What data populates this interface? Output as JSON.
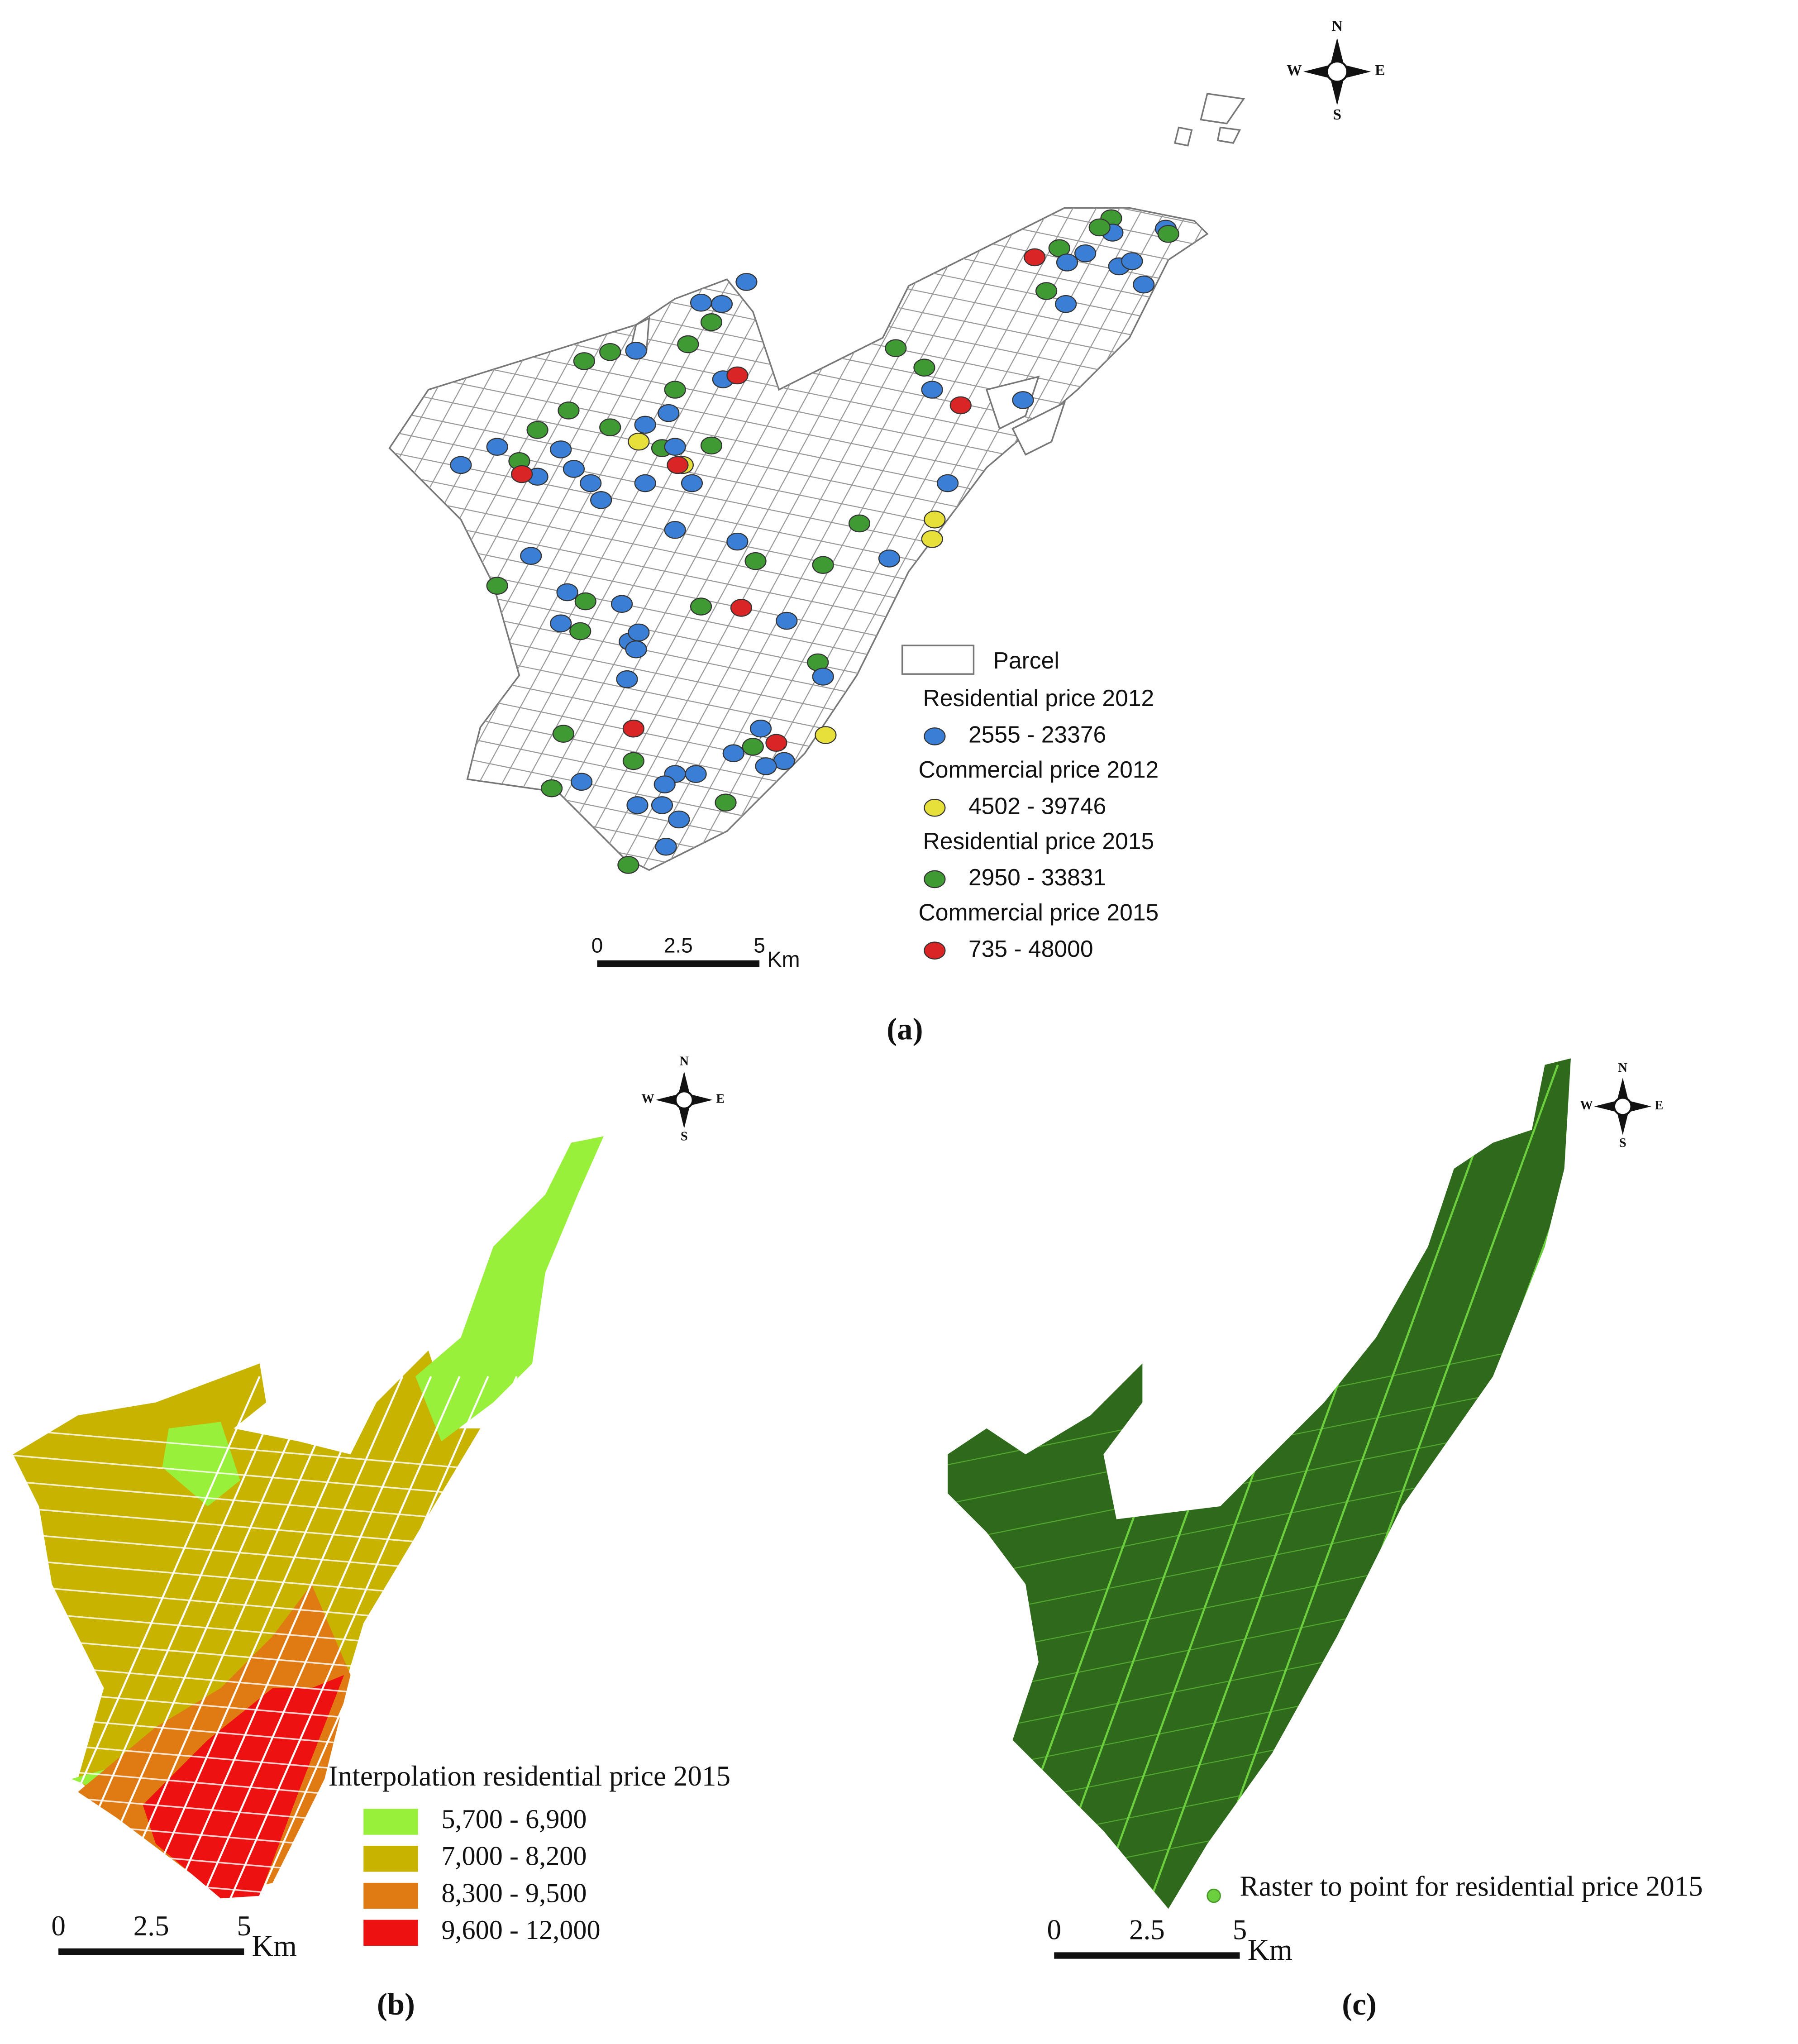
{
  "panel_a": {
    "compass": {
      "n": "N",
      "e": "E",
      "s": "S",
      "w": "W"
    },
    "legend": {
      "parcel": {
        "label": "Parcel",
        "color": "#ffffff"
      },
      "groups": [
        {
          "title": "Residential price 2012",
          "range": "2555 - 23376",
          "color": "#3a7fd5"
        },
        {
          "title": "Commercial price 2012",
          "range": "4502 - 39746",
          "color": "#e8e03a"
        },
        {
          "title": "Residential price 2015",
          "range": "2950 - 33831",
          "color": "#3f9a34"
        },
        {
          "title": "Commercial price 2015",
          "range": "735 - 48000",
          "color": "#d92525"
        }
      ]
    },
    "scale": {
      "ticks": [
        "0",
        "2.5",
        "5"
      ],
      "unit": "Km"
    },
    "caption": "(a)"
  },
  "panel_b": {
    "compass": {
      "n": "N",
      "e": "E",
      "s": "S",
      "w": "W"
    },
    "legend": {
      "title": "Interpolation residential price 2015",
      "classes": [
        {
          "label": "5,700 - 6,900",
          "color": "#99f03a"
        },
        {
          "label": "7,000 - 8,200",
          "color": "#c8b400"
        },
        {
          "label": "8,300 - 9,500",
          "color": "#e07b14"
        },
        {
          "label": "9,600 - 12,000",
          "color": "#ee1111"
        }
      ]
    },
    "scale": {
      "ticks": [
        "0",
        "2.5",
        "5"
      ],
      "unit": "Km"
    },
    "caption": "(b)"
  },
  "panel_c": {
    "compass": {
      "n": "N",
      "e": "E",
      "s": "S",
      "w": "W"
    },
    "legend": {
      "label": "Raster to point for residential price 2015",
      "color": "#6bcf3e"
    },
    "scale": {
      "ticks": [
        "0",
        "2.5",
        "5"
      ],
      "unit": "Km"
    },
    "caption": "(c)"
  }
}
